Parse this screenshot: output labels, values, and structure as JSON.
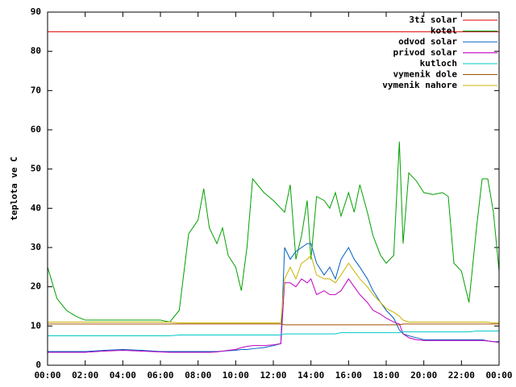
{
  "chart_data": {
    "type": "line",
    "ylabel": "teplota ve C",
    "x": [
      0,
      0.5,
      1,
      1.5,
      2,
      3,
      4,
      5,
      6,
      6.5,
      7,
      7.5,
      8,
      8.3,
      8.6,
      9,
      9.3,
      9.6,
      10,
      10.3,
      10.6,
      10.9,
      11.5,
      12,
      12.4,
      12.6,
      12.9,
      13.2,
      13.5,
      13.8,
      14,
      14.3,
      14.7,
      15,
      15.3,
      15.6,
      16,
      16.3,
      16.6,
      17,
      17.3,
      17.7,
      18,
      18.4,
      18.7,
      18.9,
      19.2,
      19.6,
      20,
      20.5,
      21,
      21.3,
      21.6,
      22,
      22.4,
      22.8,
      23.1,
      23.4,
      23.7,
      24
    ],
    "series": [
      {
        "name": "3ti solar",
        "color": "#e00000",
        "values": [
          85,
          85,
          85,
          85,
          85,
          85,
          85,
          85,
          85,
          85,
          85,
          85,
          85,
          85,
          85,
          85,
          85,
          85,
          85,
          85,
          85,
          85,
          85,
          85,
          85,
          85,
          85,
          85,
          85,
          85,
          85,
          85,
          85,
          85,
          85,
          85,
          85,
          85,
          85,
          85,
          85,
          85,
          85,
          85,
          85,
          85,
          85,
          85,
          85,
          85,
          85,
          85,
          85,
          85,
          85,
          85,
          85,
          85,
          85,
          85
        ]
      },
      {
        "name": "kotel",
        "color": "#00a000",
        "values": [
          25,
          17,
          14,
          12.5,
          11.5,
          11.5,
          11.5,
          11.5,
          11.5,
          11,
          14,
          33.5,
          37,
          45,
          35,
          31,
          35,
          28,
          25,
          19,
          30,
          47.5,
          44,
          42,
          40,
          39,
          46,
          27,
          33,
          42,
          27,
          43,
          42,
          40,
          44,
          38,
          44,
          39,
          46,
          39,
          33,
          28,
          26,
          28,
          57,
          31,
          49,
          47,
          44,
          43.5,
          44,
          43,
          26,
          24,
          16,
          35,
          47.5,
          47.5,
          39,
          24
        ]
      },
      {
        "name": "odvod solar",
        "color": "#0060c0",
        "values": [
          3.5,
          3.5,
          3.5,
          3.5,
          3.5,
          3.8,
          4,
          3.8,
          3.5,
          3.5,
          3.5,
          3.5,
          3.5,
          3.5,
          3.5,
          3.5,
          3.6,
          3.7,
          3.8,
          4,
          4,
          4.2,
          4.5,
          5,
          5.5,
          30,
          27,
          29,
          30,
          31,
          31,
          26,
          23,
          25,
          22,
          27,
          30,
          27,
          25,
          22,
          19,
          16,
          14,
          12,
          9,
          8,
          7.5,
          7,
          6.5,
          6.5,
          6.5,
          6.5,
          6.5,
          6.5,
          6.5,
          6.5,
          6.5,
          6.2,
          6,
          6
        ]
      },
      {
        "name": "privod solar",
        "color": "#c000c0",
        "values": [
          3.3,
          3.3,
          3.3,
          3.3,
          3.3,
          3.6,
          3.8,
          3.6,
          3.4,
          3.3,
          3.3,
          3.3,
          3.3,
          3.3,
          3.3,
          3.4,
          3.6,
          3.8,
          4,
          4.5,
          4.8,
          5,
          5,
          5.2,
          5.5,
          21,
          21,
          20,
          22,
          21,
          22,
          18,
          19,
          18,
          18,
          19,
          22,
          20,
          18,
          16,
          14,
          13,
          12,
          11,
          10.5,
          8,
          7,
          6.5,
          6.3,
          6.3,
          6.3,
          6.3,
          6.3,
          6.3,
          6.3,
          6.3,
          6.3,
          6.2,
          6,
          5.8
        ]
      },
      {
        "name": "kutloch",
        "color": "#00c8c8",
        "values": [
          7.5,
          7.5,
          7.5,
          7.5,
          7.5,
          7.5,
          7.5,
          7.5,
          7.5,
          7.5,
          7.7,
          7.7,
          7.7,
          7.7,
          7.7,
          7.7,
          7.7,
          7.7,
          7.7,
          7.7,
          7.7,
          7.7,
          7.7,
          7.7,
          7.7,
          8,
          8,
          8,
          8,
          8,
          8,
          8,
          8,
          8,
          8,
          8.3,
          8.3,
          8.3,
          8.3,
          8.3,
          8.3,
          8.3,
          8.3,
          8.3,
          8.3,
          8.5,
          8.5,
          8.5,
          8.5,
          8.5,
          8.5,
          8.5,
          8.5,
          8.5,
          8.5,
          8.7,
          8.7,
          8.7,
          8.7,
          8.7
        ]
      },
      {
        "name": "vymenik dole",
        "color": "#a05000",
        "values": [
          10.5,
          10.5,
          10.5,
          10.5,
          10.5,
          10.5,
          10.5,
          10.5,
          10.5,
          10.5,
          10.5,
          10.5,
          10.5,
          10.5,
          10.5,
          10.5,
          10.5,
          10.5,
          10.5,
          10.5,
          10.5,
          10.5,
          10.5,
          10.5,
          10.5,
          10.3,
          10.3,
          10.3,
          10.3,
          10.3,
          10.3,
          10.3,
          10.3,
          10.3,
          10.3,
          10.3,
          10.3,
          10.3,
          10.3,
          10.3,
          10.3,
          10.3,
          10.3,
          10.3,
          10.3,
          10.5,
          10.5,
          10.5,
          10.5,
          10.5,
          10.5,
          10.5,
          10.5,
          10.5,
          10.5,
          10.5,
          10.5,
          10.5,
          10.5,
          10.5
        ]
      },
      {
        "name": "vymenik nahore",
        "color": "#c8b400",
        "values": [
          11,
          11,
          11,
          11,
          11,
          11,
          11,
          11,
          11,
          11,
          10.8,
          10.8,
          10.8,
          10.8,
          10.8,
          10.8,
          10.8,
          10.8,
          10.8,
          10.8,
          10.8,
          10.8,
          10.8,
          10.8,
          10.8,
          22,
          25,
          22,
          26,
          27,
          28,
          23,
          22,
          22,
          21,
          23,
          26,
          24,
          22,
          20,
          18,
          16,
          14.5,
          13.5,
          12.5,
          11.5,
          11,
          11,
          11,
          11,
          11,
          11,
          11,
          11,
          11,
          11,
          11,
          11,
          10.8,
          10.8
        ]
      }
    ],
    "xlim": [
      0,
      24
    ],
    "xticks": [
      {
        "value": 0,
        "label": "00:00"
      },
      {
        "value": 2,
        "label": "02:00"
      },
      {
        "value": 4,
        "label": "04:00"
      },
      {
        "value": 6,
        "label": "06:00"
      },
      {
        "value": 8,
        "label": "08:00"
      },
      {
        "value": 10,
        "label": "10:00"
      },
      {
        "value": 12,
        "label": "12:00"
      },
      {
        "value": 14,
        "label": "14:00"
      },
      {
        "value": 16,
        "label": "16:00"
      },
      {
        "value": 18,
        "label": "18:00"
      },
      {
        "value": 20,
        "label": "20:00"
      },
      {
        "value": 22,
        "label": "22:00"
      },
      {
        "value": 24,
        "label": "00:00"
      }
    ],
    "ylim": [
      0,
      90
    ],
    "yticks": [
      0,
      10,
      20,
      30,
      40,
      50,
      60,
      70,
      80,
      90
    ],
    "grid": false,
    "legend": "top-right"
  }
}
